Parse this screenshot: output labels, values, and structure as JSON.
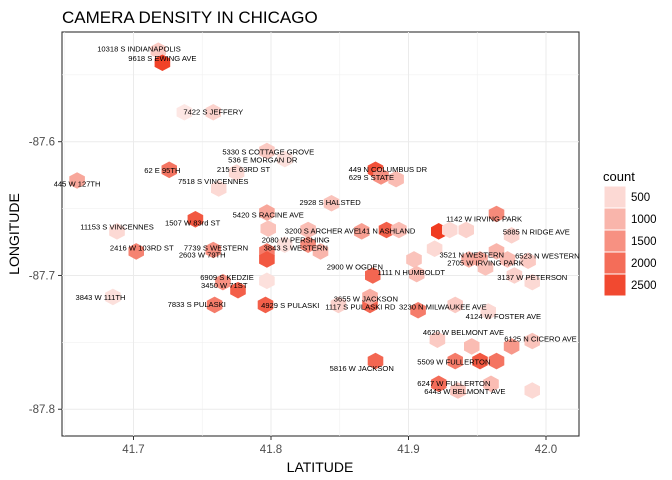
{
  "chart_data": {
    "type": "hexbin",
    "title": "CAMERA DENSITY IN CHICAGO",
    "xlabel": "LATITUDE",
    "ylabel": "LONGITUDE",
    "xlim": [
      41.648,
      42.024
    ],
    "ylim": [
      -87.82,
      -87.518
    ],
    "x_ticks": [
      41.7,
      41.8,
      41.9,
      42.0
    ],
    "x_tick_labels": [
      "41.7",
      "41.8",
      "41.9",
      "42.0"
    ],
    "y_ticks": [
      -87.6,
      -87.7,
      -87.8
    ],
    "y_tick_labels": [
      "-87.6",
      "-87.7",
      "-87.8"
    ],
    "grid": true,
    "legend": {
      "title": "count",
      "position": "right",
      "levels": [
        500,
        1000,
        1500,
        2000,
        2500
      ],
      "labels": [
        "500",
        "1000",
        "1500",
        "2000",
        "2500"
      ],
      "color_low": "#fde7e4",
      "color_high": "#f03b20"
    },
    "hexes": [
      {
        "x": 41.718,
        "y": -87.532,
        "count": 700
      },
      {
        "x": 41.721,
        "y": -87.541,
        "count": 2600
      },
      {
        "x": 41.737,
        "y": -87.578,
        "count": 300
      },
      {
        "x": 41.758,
        "y": -87.578,
        "count": 600
      },
      {
        "x": 41.797,
        "y": -87.607,
        "count": 700
      },
      {
        "x": 41.81,
        "y": -87.613,
        "count": 400
      },
      {
        "x": 41.726,
        "y": -87.621,
        "count": 1900
      },
      {
        "x": 41.775,
        "y": -87.623,
        "count": 500
      },
      {
        "x": 41.762,
        "y": -87.635,
        "count": 500
      },
      {
        "x": 41.659,
        "y": -87.629,
        "count": 1200
      },
      {
        "x": 41.876,
        "y": -87.621,
        "count": 2400
      },
      {
        "x": 41.88,
        "y": -87.626,
        "count": 1500
      },
      {
        "x": 41.891,
        "y": -87.628,
        "count": 900
      },
      {
        "x": 41.844,
        "y": -87.646,
        "count": 800
      },
      {
        "x": 41.797,
        "y": -87.653,
        "count": 1200
      },
      {
        "x": 41.745,
        "y": -87.658,
        "count": 2300
      },
      {
        "x": 41.688,
        "y": -87.667,
        "count": 500
      },
      {
        "x": 41.798,
        "y": -87.665,
        "count": 800
      },
      {
        "x": 41.827,
        "y": -87.666,
        "count": 900
      },
      {
        "x": 41.866,
        "y": -87.667,
        "count": 1300
      },
      {
        "x": 41.884,
        "y": -87.666,
        "count": 2200
      },
      {
        "x": 41.893,
        "y": -87.666,
        "count": 900
      },
      {
        "x": 41.922,
        "y": -87.667,
        "count": 2700
      },
      {
        "x": 41.93,
        "y": -87.666,
        "count": 500
      },
      {
        "x": 41.942,
        "y": -87.666,
        "count": 600
      },
      {
        "x": 41.964,
        "y": -87.654,
        "count": 1600
      },
      {
        "x": 41.975,
        "y": -87.67,
        "count": 600
      },
      {
        "x": 41.702,
        "y": -87.682,
        "count": 1700
      },
      {
        "x": 41.758,
        "y": -87.681,
        "count": 1500
      },
      {
        "x": 41.797,
        "y": -87.682,
        "count": 1800
      },
      {
        "x": 41.81,
        "y": -87.677,
        "count": 400
      },
      {
        "x": 41.827,
        "y": -87.677,
        "count": 1600
      },
      {
        "x": 41.836,
        "y": -87.682,
        "count": 1000
      },
      {
        "x": 41.797,
        "y": -87.688,
        "count": 2300
      },
      {
        "x": 41.904,
        "y": -87.688,
        "count": 800
      },
      {
        "x": 41.919,
        "y": -87.68,
        "count": 500
      },
      {
        "x": 41.944,
        "y": -87.688,
        "count": 1100
      },
      {
        "x": 41.952,
        "y": -87.688,
        "count": 1200
      },
      {
        "x": 41.964,
        "y": -87.682,
        "count": 1000
      },
      {
        "x": 41.972,
        "y": -87.688,
        "count": 900
      },
      {
        "x": 41.987,
        "y": -87.689,
        "count": 700
      },
      {
        "x": 41.874,
        "y": -87.7,
        "count": 2100
      },
      {
        "x": 41.906,
        "y": -87.699,
        "count": 900
      },
      {
        "x": 41.956,
        "y": -87.694,
        "count": 800
      },
      {
        "x": 41.977,
        "y": -87.7,
        "count": 600
      },
      {
        "x": 41.99,
        "y": -87.705,
        "count": 500
      },
      {
        "x": 41.765,
        "y": -87.705,
        "count": 1500
      },
      {
        "x": 41.797,
        "y": -87.704,
        "count": 400
      },
      {
        "x": 41.776,
        "y": -87.711,
        "count": 2200
      },
      {
        "x": 41.685,
        "y": -87.716,
        "count": 400
      },
      {
        "x": 41.759,
        "y": -87.722,
        "count": 1800
      },
      {
        "x": 41.796,
        "y": -87.722,
        "count": 2200
      },
      {
        "x": 41.849,
        "y": -87.722,
        "count": 600
      },
      {
        "x": 41.872,
        "y": -87.722,
        "count": 2100
      },
      {
        "x": 41.872,
        "y": -87.716,
        "count": 1100
      },
      {
        "x": 41.907,
        "y": -87.726,
        "count": 1800
      },
      {
        "x": 41.934,
        "y": -87.722,
        "count": 700
      },
      {
        "x": 41.958,
        "y": -87.727,
        "count": 500
      },
      {
        "x": 41.921,
        "y": -87.748,
        "count": 700
      },
      {
        "x": 41.946,
        "y": -87.753,
        "count": 900
      },
      {
        "x": 41.975,
        "y": -87.753,
        "count": 1400
      },
      {
        "x": 41.99,
        "y": -87.749,
        "count": 800
      },
      {
        "x": 41.876,
        "y": -87.764,
        "count": 2100
      },
      {
        "x": 41.934,
        "y": -87.764,
        "count": 1800
      },
      {
        "x": 41.952,
        "y": -87.764,
        "count": 2300
      },
      {
        "x": 41.964,
        "y": -87.764,
        "count": 1900
      },
      {
        "x": 41.922,
        "y": -87.781,
        "count": 2000
      },
      {
        "x": 41.936,
        "y": -87.786,
        "count": 800
      },
      {
        "x": 41.96,
        "y": -87.781,
        "count": 900
      },
      {
        "x": 41.99,
        "y": -87.786,
        "count": 500
      }
    ],
    "annotations": [
      {
        "text": "10318 S INDIANAPOLIS",
        "x": 41.704,
        "y": -87.531
      },
      {
        "text": "9618 S EWING AVE",
        "x": 41.721,
        "y": -87.538
      },
      {
        "text": "7422 S JEFFERY",
        "x": 41.758,
        "y": -87.578
      },
      {
        "text": "5330 S COTTAGE GROVE",
        "x": 41.798,
        "y": -87.608
      },
      {
        "text": "536 E MORGAN DR",
        "x": 41.794,
        "y": -87.614
      },
      {
        "text": "215 E 63RD ST",
        "x": 41.78,
        "y": -87.621
      },
      {
        "text": "62 E 95TH",
        "x": 41.721,
        "y": -87.622
      },
      {
        "text": "7518 S VINCENNES",
        "x": 41.758,
        "y": -87.63
      },
      {
        "text": "445 W 127TH",
        "x": 41.659,
        "y": -87.632
      },
      {
        "text": "449 N COLUMBUS DR",
        "x": 41.885,
        "y": -87.621
      },
      {
        "text": "629 S STATE",
        "x": 41.873,
        "y": -87.627
      },
      {
        "text": "2928 S HALSTED",
        "x": 41.843,
        "y": -87.646
      },
      {
        "text": "5420 S RACINE AVE",
        "x": 41.798,
        "y": -87.655
      },
      {
        "text": "1507 W 83rd ST",
        "x": 41.743,
        "y": -87.661
      },
      {
        "text": "11153 S VINCENNES",
        "x": 41.688,
        "y": -87.664
      },
      {
        "text": "3200 S ARCHER AVE",
        "x": 41.837,
        "y": -87.667
      },
      {
        "text": "141 N ASHLAND",
        "x": 41.884,
        "y": -87.667
      },
      {
        "text": "1142 W IRVING PARK",
        "x": 41.955,
        "y": -87.658
      },
      {
        "text": "5885 N RIDGE AVE",
        "x": 41.993,
        "y": -87.668
      },
      {
        "text": "2080 W PERSHING",
        "x": 41.818,
        "y": -87.674
      },
      {
        "text": "2416 W 103RD ST",
        "x": 41.706,
        "y": -87.68
      },
      {
        "text": "7739 S WESTERN",
        "x": 41.76,
        "y": -87.68
      },
      {
        "text": "3843 S WESTERN",
        "x": 41.818,
        "y": -87.68
      },
      {
        "text": "2603 W 79TH",
        "x": 41.75,
        "y": -87.685
      },
      {
        "text": "3521 N WESTERN",
        "x": 41.946,
        "y": -87.685
      },
      {
        "text": "6523 N WESTERN",
        "x": 42.001,
        "y": -87.686
      },
      {
        "text": "2705 W IRVING PARK",
        "x": 41.956,
        "y": -87.691
      },
      {
        "text": "2900 W OGDEN",
        "x": 41.861,
        "y": -87.694
      },
      {
        "text": "1111 N HUMBOLDT",
        "x": 41.902,
        "y": -87.698
      },
      {
        "text": "3137 W PETERSON",
        "x": 41.99,
        "y": -87.702
      },
      {
        "text": "6909 S KEDZIE",
        "x": 41.768,
        "y": -87.702
      },
      {
        "text": "3450 W 71ST",
        "x": 41.766,
        "y": -87.708
      },
      {
        "text": "3843 W 111TH",
        "x": 41.676,
        "y": -87.717
      },
      {
        "text": "7833 S PULASKI",
        "x": 41.746,
        "y": -87.722
      },
      {
        "text": "4929 S PULASKI",
        "x": 41.814,
        "y": -87.723
      },
      {
        "text": "3655 W JACKSON",
        "x": 41.869,
        "y": -87.718
      },
      {
        "text": "1117 S PULASKI RD",
        "x": 41.865,
        "y": -87.724
      },
      {
        "text": "3230 N MILWAUKEE AVE",
        "x": 41.925,
        "y": -87.724
      },
      {
        "text": "4124 W FOSTER AVE",
        "x": 41.969,
        "y": -87.731
      },
      {
        "text": "4620 W BELMONT AVE",
        "x": 41.94,
        "y": -87.743
      },
      {
        "text": "6125 N CICERO AVE",
        "x": 41.996,
        "y": -87.748
      },
      {
        "text": "5509 W FULLERTON",
        "x": 41.933,
        "y": -87.765
      },
      {
        "text": "5816 W JACKSON",
        "x": 41.866,
        "y": -87.77
      },
      {
        "text": "6247 W FULLERTON",
        "x": 41.933,
        "y": -87.781
      },
      {
        "text": "6443 W BELMONT AVE",
        "x": 41.941,
        "y": -87.787
      }
    ]
  }
}
